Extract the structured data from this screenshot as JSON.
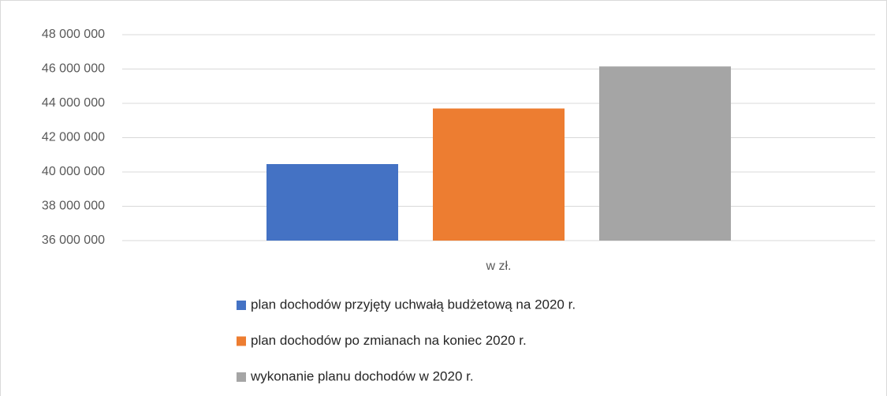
{
  "chart_data": {
    "type": "bar",
    "categories": [
      "w zł."
    ],
    "series": [
      {
        "name": "plan dochodów przyjęty uchwałą budżetową na 2020 r.",
        "color": "#4472c4",
        "values": [
          40460000
        ]
      },
      {
        "name": "plan dochodów po zmianach na koniec 2020 r.",
        "color": "#ed7d31",
        "values": [
          43700000
        ]
      },
      {
        "name": "wykonanie planu dochodów w 2020 r.",
        "color": "#a5a5a5",
        "values": [
          46150000
        ]
      }
    ],
    "ylim": [
      36000000,
      48000000
    ],
    "yticks": [
      {
        "value": 36000000,
        "label": "36 000 000"
      },
      {
        "value": 38000000,
        "label": "38 000 000"
      },
      {
        "value": 40000000,
        "label": "40 000 000"
      },
      {
        "value": 42000000,
        "label": "42 000 000"
      },
      {
        "value": 44000000,
        "label": "44 000 000"
      },
      {
        "value": 46000000,
        "label": "46 000 000"
      },
      {
        "value": 48000000,
        "label": "48 000 000"
      }
    ],
    "grid": true
  }
}
